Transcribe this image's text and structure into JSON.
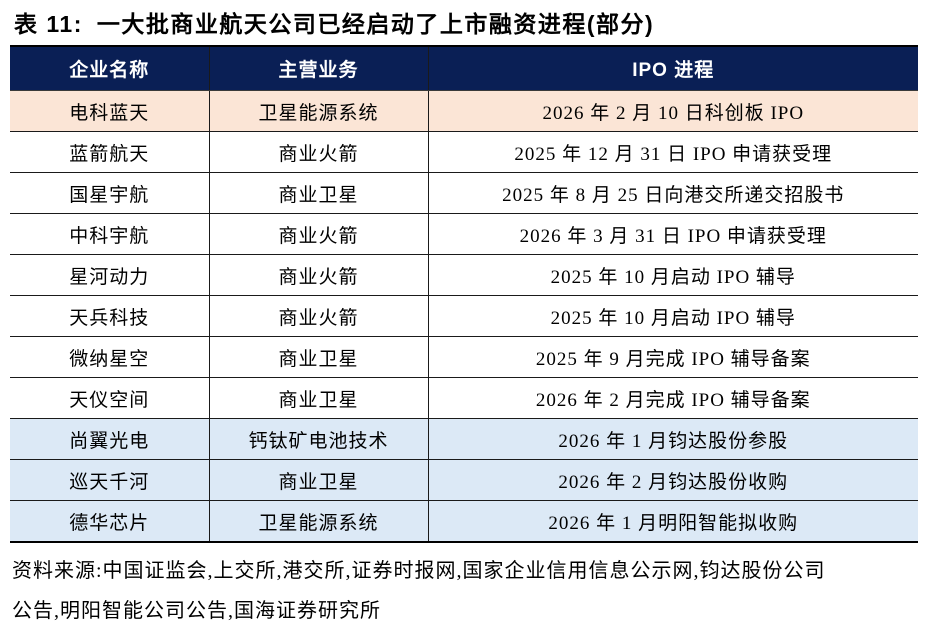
{
  "colors": {
    "header_bg": "#0A1F55",
    "header_text": "#FFFFFF",
    "row_highlight_peach": "#FBE5D6",
    "row_highlight_blue": "#DCE9F6",
    "border": "#1A1A1A",
    "body_text": "#000000"
  },
  "title": {
    "prefix": "表 11:",
    "text": "一大批商业航天公司已经启动了上市融资进程(部分)"
  },
  "table": {
    "headers": [
      "企业名称",
      "主营业务",
      "IPO 进程"
    ],
    "rows": [
      {
        "company": "电科蓝天",
        "business": "卫星能源系统",
        "progress": "2026 年 2 月 10 日科创板 IPO",
        "highlight": "peach"
      },
      {
        "company": "蓝箭航天",
        "business": "商业火箭",
        "progress": "2025 年 12 月 31 日 IPO 申请获受理",
        "highlight": "none"
      },
      {
        "company": "国星宇航",
        "business": "商业卫星",
        "progress": "2025 年 8 月 25 日向港交所递交招股书",
        "highlight": "none"
      },
      {
        "company": "中科宇航",
        "business": "商业火箭",
        "progress": "2026 年 3 月 31 日 IPO 申请获受理",
        "highlight": "none"
      },
      {
        "company": "星河动力",
        "business": "商业火箭",
        "progress": "2025 年 10 月启动 IPO 辅导",
        "highlight": "none"
      },
      {
        "company": "天兵科技",
        "business": "商业火箭",
        "progress": "2025 年 10 月启动 IPO 辅导",
        "highlight": "none"
      },
      {
        "company": "微纳星空",
        "business": "商业卫星",
        "progress": "2025 年 9 月完成 IPO 辅导备案",
        "highlight": "none"
      },
      {
        "company": "天仪空间",
        "business": "商业卫星",
        "progress": "2026 年 2 月完成 IPO 辅导备案",
        "highlight": "none"
      },
      {
        "company": "尚翼光电",
        "business": "钙钛矿电池技术",
        "progress": "2026 年 1 月钧达股份参股",
        "highlight": "blue"
      },
      {
        "company": "巡天千河",
        "business": "商业卫星",
        "progress": "2026 年 2 月钧达股份收购",
        "highlight": "blue"
      },
      {
        "company": "德华芯片",
        "business": "卫星能源系统",
        "progress": "2026 年 1 月明阳智能拟收购",
        "highlight": "blue"
      }
    ]
  },
  "source_note": "资料来源:中国证监会,上交所,港交所,证券时报网,国家企业信用信息公示网,钧达股份公司公告,明阳智能公司公告,国海证券研究所"
}
